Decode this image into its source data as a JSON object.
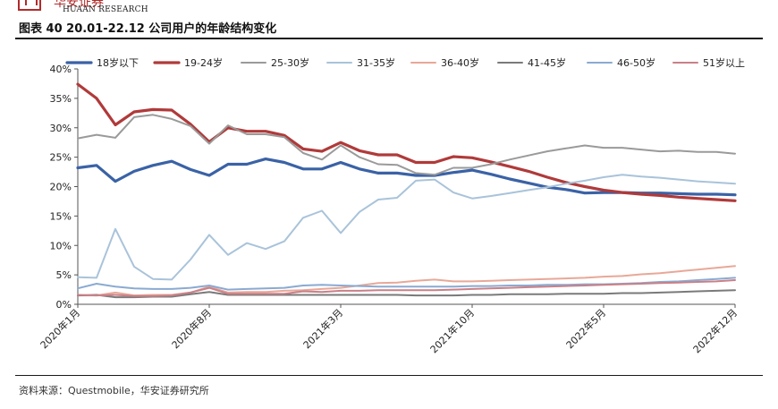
{
  "header": {
    "brand_cn": "华安证券",
    "brand_en": "HUAAN RESEARCH",
    "title": "图表 40 20.01-22.12 公司用户的年龄结构变化"
  },
  "footer": {
    "source": "资料来源：Questmobile，华安证券研究所"
  },
  "chart_data": {
    "type": "line",
    "title": "",
    "xlabel": "",
    "ylabel": "",
    "ylim": [
      0,
      40
    ],
    "y_ticks": [
      "0%",
      "5%",
      "10%",
      "15%",
      "20%",
      "25%",
      "30%",
      "35%",
      "40%"
    ],
    "x_ticks": [
      {
        "index": 0,
        "label": "2020年1月"
      },
      {
        "index": 7,
        "label": "2020年8月"
      },
      {
        "index": 14,
        "label": "2021年3月"
      },
      {
        "index": 21,
        "label": "2021年10月"
      },
      {
        "index": 28,
        "label": "2022年5月"
      },
      {
        "index": 35,
        "label": "2022年12月"
      }
    ],
    "legend_position": "top",
    "series": [
      {
        "name": "18岁以下",
        "color": "#3a62a6",
        "width": 3.2,
        "values": [
          23.2,
          23.6,
          20.9,
          22.6,
          23.6,
          24.3,
          22.9,
          21.9,
          23.8,
          23.8,
          24.7,
          24.1,
          23.0,
          23.0,
          24.1,
          23.0,
          22.3,
          22.3,
          21.9,
          21.9,
          22.4,
          22.8,
          22.1,
          21.3,
          20.6,
          19.9,
          19.5,
          18.9,
          19.0,
          19.0,
          18.9,
          18.9,
          18.8,
          18.7,
          18.7,
          18.6
        ]
      },
      {
        "name": "19-24岁",
        "color": "#b03a3a",
        "width": 3.2,
        "values": [
          37.4,
          35.0,
          30.5,
          32.7,
          33.1,
          33.0,
          30.6,
          27.6,
          30.0,
          29.4,
          29.4,
          28.7,
          26.4,
          26.0,
          27.5,
          26.1,
          25.4,
          25.4,
          24.1,
          24.1,
          25.1,
          24.9,
          24.2,
          23.4,
          22.6,
          21.6,
          20.7,
          20.0,
          19.4,
          19.0,
          18.7,
          18.5,
          18.2,
          18.0,
          17.8,
          17.6
        ]
      },
      {
        "name": "25-30岁",
        "color": "#9a9a9a",
        "width": 2,
        "values": [
          28.2,
          28.8,
          28.3,
          31.8,
          32.2,
          31.5,
          30.3,
          27.3,
          30.4,
          28.9,
          28.9,
          28.4,
          25.7,
          24.6,
          27.0,
          25.0,
          23.8,
          23.7,
          22.3,
          22.0,
          23.2,
          23.2,
          23.8,
          24.6,
          25.3,
          26.0,
          26.5,
          27.0,
          26.6,
          26.6,
          26.3,
          26.0,
          26.1,
          25.9,
          25.9,
          25.6
        ]
      },
      {
        "name": "31-35岁",
        "color": "#a9c3da",
        "width": 2,
        "values": [
          4.6,
          4.5,
          12.8,
          6.4,
          4.3,
          4.2,
          7.6,
          11.8,
          8.4,
          10.4,
          9.4,
          10.7,
          14.7,
          15.9,
          12.1,
          15.7,
          17.8,
          18.1,
          21.0,
          21.2,
          19.0,
          18.0,
          18.4,
          18.9,
          19.4,
          19.9,
          20.5,
          21.0,
          21.6,
          22.0,
          21.7,
          21.5,
          21.2,
          20.9,
          20.7,
          20.5
        ]
      },
      {
        "name": "36-40岁",
        "color": "#e8a898",
        "width": 2,
        "values": [
          1.5,
          1.5,
          2.0,
          1.5,
          1.6,
          1.6,
          2.0,
          3.0,
          2.0,
          2.1,
          2.1,
          2.3,
          2.4,
          2.6,
          2.8,
          3.2,
          3.6,
          3.7,
          4.0,
          4.2,
          3.9,
          3.9,
          4.0,
          4.1,
          4.2,
          4.3,
          4.4,
          4.5,
          4.7,
          4.8,
          5.1,
          5.3,
          5.6,
          5.9,
          6.2,
          6.5
        ]
      },
      {
        "name": "41-45岁",
        "color": "#7a7a7a",
        "width": 2,
        "values": [
          1.5,
          1.6,
          1.2,
          1.2,
          1.3,
          1.3,
          1.7,
          2.1,
          1.6,
          1.6,
          1.6,
          1.6,
          1.6,
          1.6,
          1.6,
          1.6,
          1.6,
          1.6,
          1.5,
          1.5,
          1.5,
          1.6,
          1.6,
          1.7,
          1.7,
          1.7,
          1.8,
          1.8,
          1.8,
          1.9,
          1.9,
          2.0,
          2.1,
          2.2,
          2.3,
          2.4
        ]
      },
      {
        "name": "46-50岁",
        "color": "#8aaad2",
        "width": 2,
        "values": [
          2.7,
          3.5,
          3.0,
          2.7,
          2.6,
          2.6,
          2.8,
          3.2,
          2.5,
          2.6,
          2.7,
          2.8,
          3.2,
          3.3,
          3.2,
          3.1,
          3.0,
          3.0,
          3.0,
          3.0,
          3.0,
          3.1,
          3.1,
          3.2,
          3.2,
          3.3,
          3.3,
          3.4,
          3.4,
          3.5,
          3.6,
          3.8,
          3.9,
          4.1,
          4.3,
          4.5
        ]
      },
      {
        "name": "51岁以上",
        "color": "#c98088",
        "width": 2,
        "values": [
          1.6,
          1.5,
          1.6,
          1.4,
          1.4,
          1.5,
          2.0,
          2.8,
          1.8,
          1.8,
          1.8,
          1.8,
          2.2,
          2.1,
          2.3,
          2.3,
          2.4,
          2.4,
          2.4,
          2.4,
          2.5,
          2.6,
          2.7,
          2.8,
          2.9,
          3.0,
          3.1,
          3.2,
          3.3,
          3.4,
          3.5,
          3.6,
          3.7,
          3.8,
          3.9,
          4.1
        ]
      }
    ]
  }
}
